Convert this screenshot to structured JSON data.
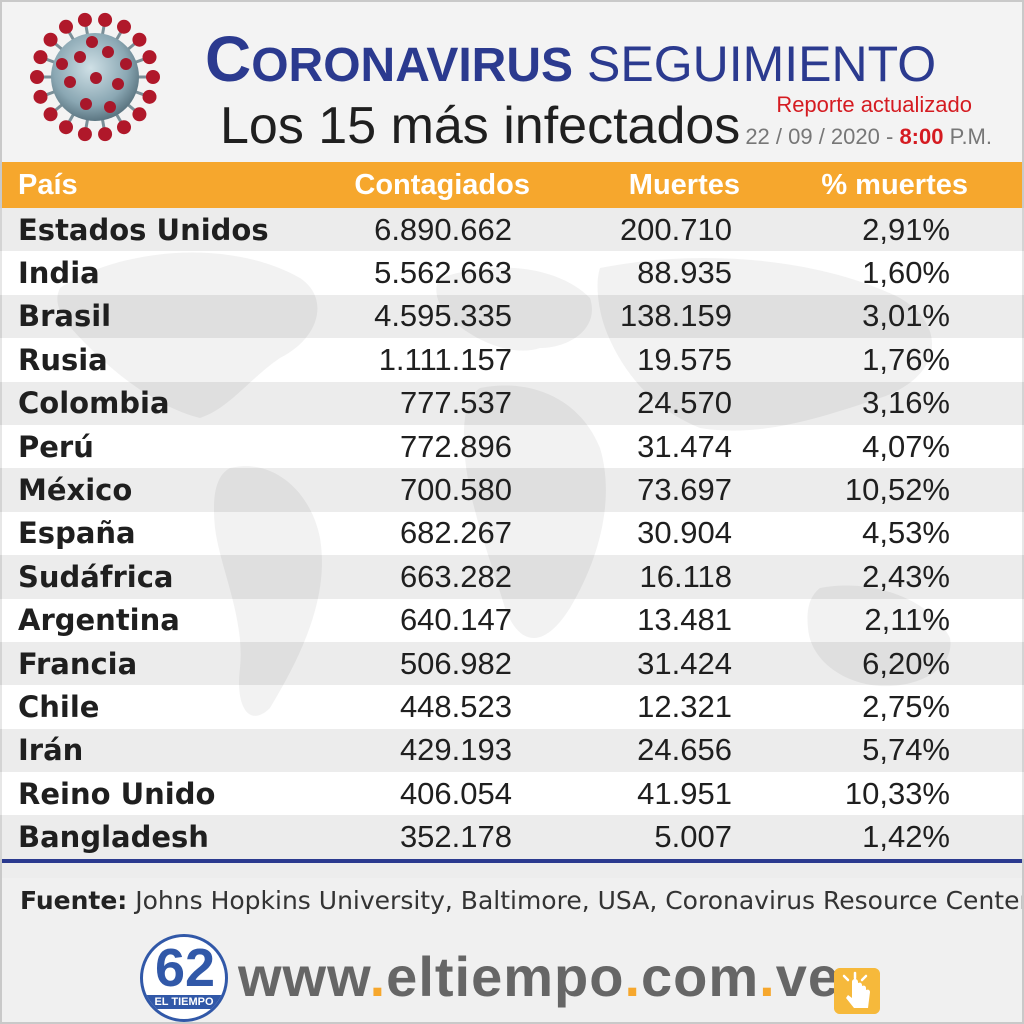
{
  "header": {
    "title_first": "C",
    "title_rest": "ORONAVIRUS",
    "title_second": "SEGUIMIENTO",
    "subtitle": "Los 15 más infectados",
    "report_label": "Reporte actualizado",
    "report_date": "22 / 09 / 2020 -",
    "report_time": "8:00",
    "report_ampm": "P.M."
  },
  "table": {
    "headers": [
      "País",
      "Contagiados",
      "Muertes",
      "% muertes"
    ],
    "rows": [
      {
        "pais": "Estados Unidos",
        "contagiados": "6.890.662",
        "muertes": "200.710",
        "pct": "2,91%"
      },
      {
        "pais": "India",
        "contagiados": "5.562.663",
        "muertes": "88.935",
        "pct": "1,60%"
      },
      {
        "pais": "Brasil",
        "contagiados": "4.595.335",
        "muertes": "138.159",
        "pct": "3,01%"
      },
      {
        "pais": "Rusia",
        "contagiados": "1.111.157",
        "muertes": "19.575",
        "pct": "1,76%"
      },
      {
        "pais": "Colombia",
        "contagiados": "777.537",
        "muertes": "24.570",
        "pct": "3,16%"
      },
      {
        "pais": "Perú",
        "contagiados": "772.896",
        "muertes": "31.474",
        "pct": "4,07%"
      },
      {
        "pais": "México",
        "contagiados": "700.580",
        "muertes": "73.697",
        "pct": "10,52%"
      },
      {
        "pais": "España",
        "contagiados": "682.267",
        "muertes": "30.904",
        "pct": "4,53%"
      },
      {
        "pais": "Sudáfrica",
        "contagiados": "663.282",
        "muertes": "16.118",
        "pct": "2,43%"
      },
      {
        "pais": "Argentina",
        "contagiados": "640.147",
        "muertes": "13.481",
        "pct": "2,11%"
      },
      {
        "pais": "Francia",
        "contagiados": "506.982",
        "muertes": "31.424",
        "pct": "6,20%"
      },
      {
        "pais": "Chile",
        "contagiados": "448.523",
        "muertes": "12.321",
        "pct": "2,75%"
      },
      {
        "pais": "Irán",
        "contagiados": "429.193",
        "muertes": "24.656",
        "pct": "5,74%"
      },
      {
        "pais": "Reino Unido",
        "contagiados": "406.054",
        "muertes": "41.951",
        "pct": "10,33%"
      },
      {
        "pais": "Bangladesh",
        "contagiados": "352.178",
        "muertes": "5.007",
        "pct": "1,42%"
      }
    ]
  },
  "footer": {
    "source_label": "Fuente:",
    "source_text": "Johns Hopkins University, Baltimore, USA, Coronavirus Resource Center",
    "logo_number": "62",
    "logo_name": "EL TIEMPO",
    "web_parts": [
      "www",
      ".",
      "eltiempo",
      ".",
      "com",
      ".",
      "ve"
    ]
  },
  "colors": {
    "title_blue": "#2b3a8f",
    "header_orange": "#f6a72d",
    "accent_red": "#d51b21"
  },
  "icons": [
    "coronavirus-illustration",
    "hand-click-icon",
    "el-tiempo-logo"
  ]
}
